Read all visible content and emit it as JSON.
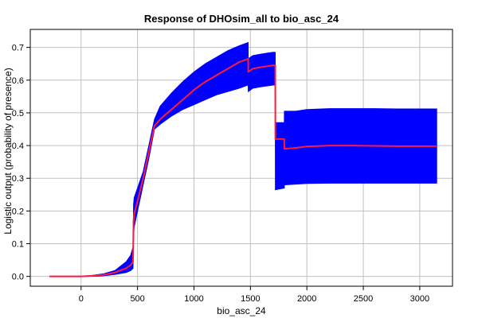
{
  "chart_data": {
    "type": "line",
    "title": "Response of DHOsim_all to bio_asc_24",
    "xlabel": "bio_asc_24",
    "ylabel": "Logistic output (probability of presence)",
    "xlim": [
      -450,
      3290
    ],
    "ylim": [
      -0.03,
      0.755
    ],
    "x_ticks": [
      0,
      500,
      1000,
      1500,
      2000,
      2500,
      3000
    ],
    "y_ticks": [
      0.0,
      0.1,
      0.2,
      0.3,
      0.4,
      0.5,
      0.6,
      0.7
    ],
    "x_tick_labels": [
      "0",
      "500",
      "1000",
      "1500",
      "2000",
      "2500",
      "3000"
    ],
    "y_tick_labels": [
      "0.0",
      "0.1",
      "0.2",
      "0.3",
      "0.4",
      "0.5",
      "0.6",
      "0.7"
    ],
    "grid": true,
    "colors": {
      "mean": "#ff1a3c",
      "band": "#0000ff",
      "grid": "#c0c0c0",
      "axis": "#000000"
    },
    "series": [
      {
        "role": "mean",
        "x": [
          -280,
          0,
          100,
          200,
          300,
          400,
          440,
          460,
          465,
          470,
          500,
          550,
          600,
          650,
          700,
          800,
          900,
          1000,
          1100,
          1200,
          1300,
          1400,
          1480,
          1481,
          1520,
          1600,
          1700,
          1720,
          1721,
          1800,
          1801,
          1900,
          2000,
          2200,
          2400,
          2600,
          2800,
          3000,
          3150
        ],
        "y": [
          0.0,
          0.0,
          0.002,
          0.005,
          0.012,
          0.025,
          0.035,
          0.045,
          0.17,
          0.19,
          0.23,
          0.3,
          0.38,
          0.46,
          0.48,
          0.51,
          0.54,
          0.57,
          0.595,
          0.615,
          0.635,
          0.655,
          0.665,
          0.625,
          0.635,
          0.64,
          0.645,
          0.645,
          0.42,
          0.42,
          0.39,
          0.393,
          0.397,
          0.4,
          0.4,
          0.399,
          0.398,
          0.398,
          0.398
        ]
      },
      {
        "role": "band-upper",
        "x": [
          -280,
          0,
          100,
          200,
          300,
          400,
          440,
          460,
          465,
          470,
          500,
          550,
          600,
          650,
          700,
          800,
          900,
          1000,
          1100,
          1200,
          1300,
          1400,
          1480,
          1481,
          1520,
          1600,
          1700,
          1720,
          1721,
          1800,
          1801,
          1900,
          2000,
          2200,
          2400,
          2600,
          2800,
          3000,
          3150
        ],
        "y": [
          0.0,
          0.0,
          0.003,
          0.008,
          0.018,
          0.045,
          0.065,
          0.09,
          0.22,
          0.24,
          0.27,
          0.32,
          0.4,
          0.48,
          0.52,
          0.56,
          0.595,
          0.625,
          0.65,
          0.67,
          0.69,
          0.705,
          0.715,
          0.665,
          0.675,
          0.68,
          0.685,
          0.685,
          0.47,
          0.47,
          0.505,
          0.505,
          0.51,
          0.513,
          0.513,
          0.513,
          0.512,
          0.512,
          0.512
        ]
      },
      {
        "role": "band-lower",
        "x": [
          -280,
          0,
          100,
          200,
          300,
          400,
          440,
          460,
          465,
          470,
          500,
          550,
          600,
          650,
          700,
          800,
          900,
          1000,
          1100,
          1200,
          1300,
          1400,
          1480,
          1481,
          1520,
          1600,
          1700,
          1720,
          1721,
          1800,
          1801,
          1900,
          2000,
          2200,
          2400,
          2600,
          2800,
          3000,
          3150
        ],
        "y": [
          0.0,
          0.0,
          0.0,
          0.002,
          0.006,
          0.012,
          0.018,
          0.025,
          0.12,
          0.15,
          0.2,
          0.28,
          0.36,
          0.45,
          0.465,
          0.49,
          0.51,
          0.525,
          0.54,
          0.555,
          0.565,
          0.575,
          0.585,
          0.565,
          0.575,
          0.58,
          0.585,
          0.585,
          0.265,
          0.27,
          0.28,
          0.282,
          0.284,
          0.285,
          0.285,
          0.285,
          0.285,
          0.285,
          0.285
        ]
      }
    ]
  }
}
